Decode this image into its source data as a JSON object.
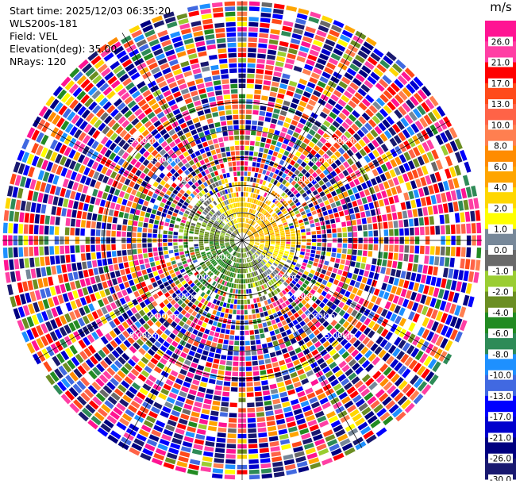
{
  "header": {
    "start_time": "Start time: 2025/12/03 06:35:20",
    "instrument": "WLS200s-181",
    "field": "Field: VEL",
    "elevation": "Elevation(deg): 35.00",
    "nrays": "NRays: 120"
  },
  "chart_data": {
    "type": "heatmap",
    "projection": "polar-ppi",
    "field": "VEL",
    "units": "m/s",
    "n_rays": 120,
    "elevation_deg": 35.0,
    "range_rings_km": [
      1.0,
      2.0,
      3.0,
      4.0,
      5.0
    ],
    "max_range_km": 5.2,
    "ring_labels": {
      "1.0": "1.00km",
      "2.0": "2.00km",
      "3.0": "3.00km",
      "4.0": "4.00km",
      "5.0": "5.00km"
    },
    "colorbar": {
      "units_label": "m/s",
      "tick_labels": [
        "26.0",
        "21.0",
        "17.0",
        "13.0",
        "10.0",
        "8.0",
        "6.0",
        "4.0",
        "2.0",
        "1.0",
        "0.0",
        "-1.0",
        "-2.0",
        "-4.0",
        "-6.0",
        "-8.0",
        "-10.0",
        "-13.0",
        "-17.0",
        "-21.0",
        "-26.0",
        "-30.0"
      ],
      "bins": [
        {
          "from": 26.0,
          "to": 30.0,
          "color": "#ff1493"
        },
        {
          "from": 21.0,
          "to": 26.0,
          "color": "#ff3fa4"
        },
        {
          "from": 17.0,
          "to": 21.0,
          "color": "#ff0000"
        },
        {
          "from": 13.0,
          "to": 17.0,
          "color": "#ff4a1a"
        },
        {
          "from": 10.0,
          "to": 13.0,
          "color": "#ff6347"
        },
        {
          "from": 8.0,
          "to": 10.0,
          "color": "#ff7f50"
        },
        {
          "from": 6.0,
          "to": 8.0,
          "color": "#ff8c00"
        },
        {
          "from": 4.0,
          "to": 6.0,
          "color": "#ffa500"
        },
        {
          "from": 2.0,
          "to": 4.0,
          "color": "#ffd700"
        },
        {
          "from": 1.0,
          "to": 2.0,
          "color": "#ffff00"
        },
        {
          "from": 0.0,
          "to": 1.0,
          "color": "#778899"
        },
        {
          "from": -1.0,
          "to": 0.0,
          "color": "#696969"
        },
        {
          "from": -2.0,
          "to": -1.0,
          "color": "#9acd32"
        },
        {
          "from": -4.0,
          "to": -2.0,
          "color": "#6b8e23"
        },
        {
          "from": -6.0,
          "to": -4.0,
          "color": "#228b22"
        },
        {
          "from": -8.0,
          "to": -6.0,
          "color": "#2e8b57"
        },
        {
          "from": -10.0,
          "to": -8.0,
          "color": "#1e90ff"
        },
        {
          "from": -13.0,
          "to": -10.0,
          "color": "#4169e1"
        },
        {
          "from": -17.0,
          "to": -13.0,
          "color": "#0000ff"
        },
        {
          "from": -21.0,
          "to": -17.0,
          "color": "#0000cd"
        },
        {
          "from": -26.0,
          "to": -21.0,
          "color": "#000080"
        },
        {
          "from": -30.0,
          "to": -26.0,
          "color": "#191970"
        }
      ]
    },
    "ring_color": "#000000",
    "grid": true
  }
}
